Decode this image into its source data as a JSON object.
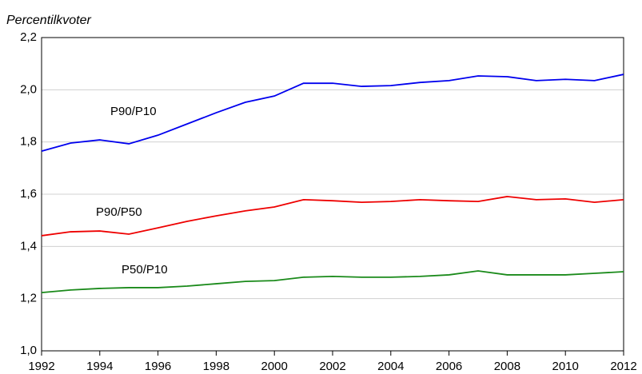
{
  "chart_data": {
    "type": "line",
    "title": "Percentilkvoter",
    "x": [
      1992,
      1993,
      1994,
      1995,
      1996,
      1997,
      1998,
      1999,
      2000,
      2001,
      2002,
      2003,
      2004,
      2005,
      2006,
      2007,
      2008,
      2009,
      2010,
      2011,
      2012
    ],
    "series": [
      {
        "name": "P90/P10",
        "color": "#0000ee",
        "values": [
          1.765,
          1.796,
          1.808,
          1.793,
          1.826,
          1.869,
          1.912,
          1.952,
          1.976,
          2.025,
          2.025,
          2.013,
          2.016,
          2.028,
          2.035,
          2.053,
          2.05,
          2.035,
          2.04,
          2.035,
          2.059
        ]
      },
      {
        "name": "P90/P50",
        "color": "#ee0000",
        "values": [
          1.441,
          1.456,
          1.459,
          1.447,
          1.471,
          1.496,
          1.517,
          1.536,
          1.551,
          1.579,
          1.575,
          1.569,
          1.572,
          1.579,
          1.575,
          1.572,
          1.591,
          1.579,
          1.582,
          1.569,
          1.579
        ]
      },
      {
        "name": "P50/P10",
        "color": "#1a8a1a",
        "values": [
          1.223,
          1.233,
          1.239,
          1.242,
          1.242,
          1.248,
          1.257,
          1.266,
          1.269,
          1.282,
          1.285,
          1.282,
          1.282,
          1.285,
          1.291,
          1.306,
          1.291,
          1.291,
          1.291,
          1.297,
          1.303
        ]
      }
    ],
    "xlim": [
      1992,
      2012
    ],
    "xticks": [
      1992,
      1994,
      1996,
      1998,
      2000,
      2002,
      2004,
      2006,
      2008,
      2010,
      2012
    ],
    "ylim": [
      1.0,
      2.2
    ],
    "yticks": [
      {
        "value": 1.0,
        "label": "1,0"
      },
      {
        "value": 1.2,
        "label": "1,2"
      },
      {
        "value": 1.4,
        "label": "1,4"
      },
      {
        "value": 1.6,
        "label": "1,6"
      },
      {
        "value": 1.8,
        "label": "1,8"
      },
      {
        "value": 2.0,
        "label": "2,0"
      },
      {
        "value": 2.2,
        "label": "2,2"
      }
    ],
    "grid": true
  }
}
